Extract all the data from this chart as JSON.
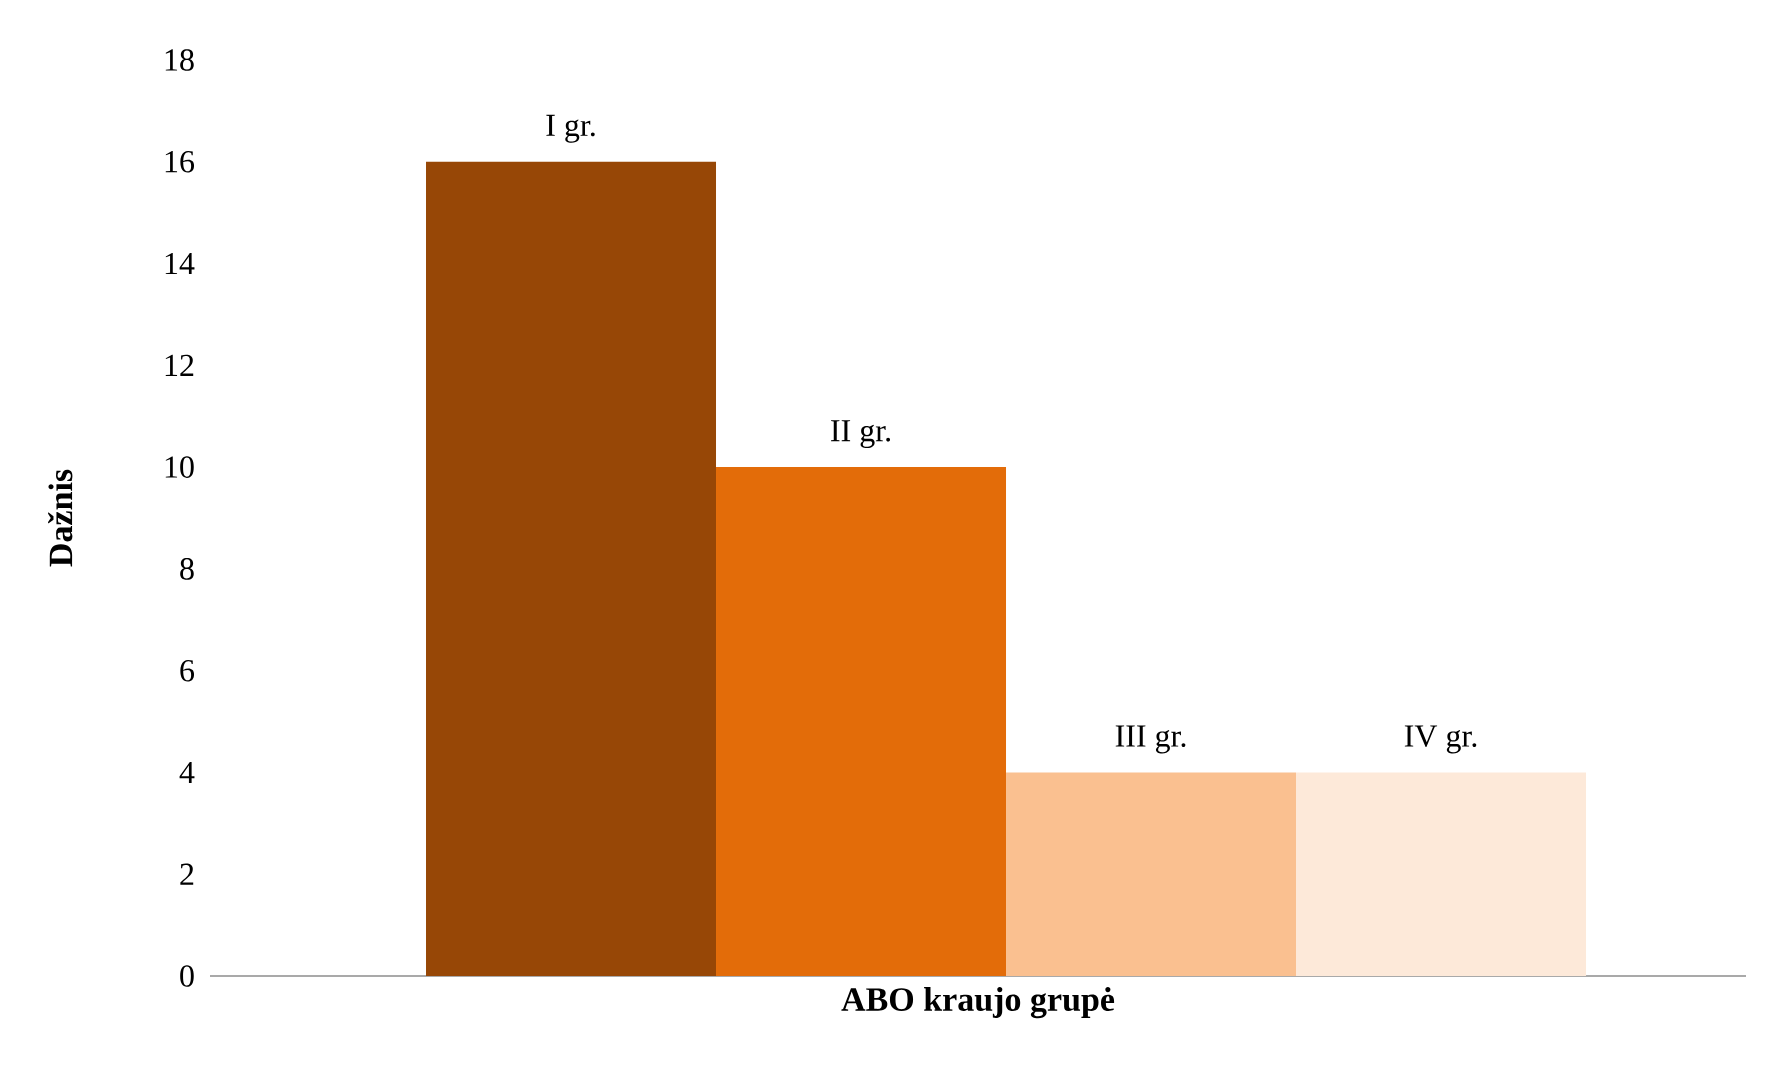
{
  "chart_data": {
    "type": "bar",
    "xlabel": "ABO kraujo grupė",
    "ylabel": "Dažnis",
    "categories": [
      null
    ],
    "series": [
      {
        "name": "I gr.",
        "color": "#974706",
        "values": [
          16
        ]
      },
      {
        "name": "II gr.",
        "color": "#e36c09",
        "values": [
          10
        ]
      },
      {
        "name": "III gr.",
        "color": "#fac090",
        "values": [
          4
        ]
      },
      {
        "name": "IV gr.",
        "color": "#fde9d9",
        "values": [
          4
        ]
      }
    ],
    "ylim": [
      0,
      18
    ],
    "yticks": [
      0,
      2,
      4,
      6,
      8,
      10,
      12,
      14,
      16,
      18
    ]
  }
}
